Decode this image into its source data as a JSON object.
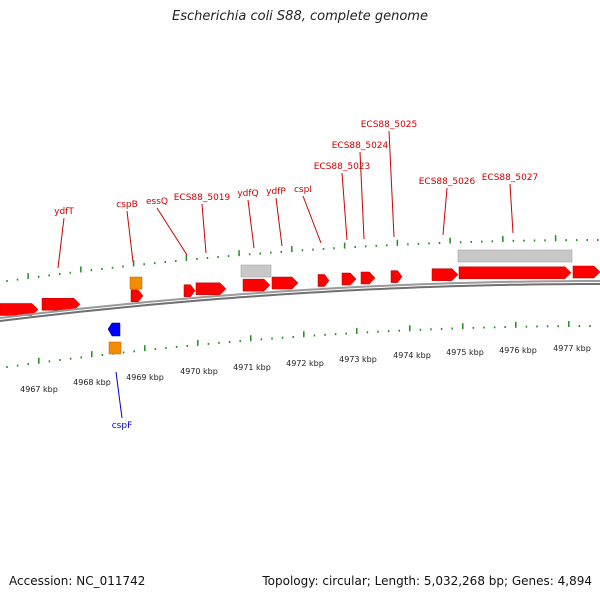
{
  "title": "Escherichia coli S88, complete genome",
  "footer": {
    "accession": "Accession: NC_011742",
    "summary": "Topology: circular; Length: 5,032,268 bp; Genes: 4,894"
  },
  "colors": {
    "forward_gene": "#ff0000",
    "reverse_gene": "#0000ff",
    "rna_feature": "#f28c00",
    "repeat_region": "#c8c8c8",
    "tick": "#228b22",
    "backbone": "#808080",
    "forward_label": "#cc0000",
    "reverse_label": "#0000cc"
  },
  "chart_data": {
    "type": "genome-map",
    "scale": {
      "unit": "kbp",
      "ticks": [
        {
          "label": "4967 kbp"
        },
        {
          "label": "4968 kbp"
        },
        {
          "label": "4969 kbp"
        },
        {
          "label": "4970 kbp"
        },
        {
          "label": "4971 kbp"
        },
        {
          "label": "4972 kbp"
        },
        {
          "label": "4973 kbp"
        },
        {
          "label": "4974 kbp"
        },
        {
          "label": "4975 kbp"
        },
        {
          "label": "4976 kbp"
        },
        {
          "label": "4977 kbp"
        }
      ]
    },
    "gene_labels": [
      {
        "name": "ydfT",
        "strand": "+"
      },
      {
        "name": "cspB",
        "strand": "+"
      },
      {
        "name": "essQ",
        "strand": "+"
      },
      {
        "name": "ECS88_5019",
        "strand": "+"
      },
      {
        "name": "ydfQ",
        "strand": "+"
      },
      {
        "name": "ydfP",
        "strand": "+"
      },
      {
        "name": "cspI",
        "strand": "+"
      },
      {
        "name": "ECS88_5023",
        "strand": "+"
      },
      {
        "name": "ECS88_5024",
        "strand": "+"
      },
      {
        "name": "ECS88_5025",
        "strand": "+"
      },
      {
        "name": "ECS88_5026",
        "strand": "+"
      },
      {
        "name": "ECS88_5027",
        "strand": "+"
      },
      {
        "name": "cspF",
        "strand": "-"
      }
    ]
  }
}
